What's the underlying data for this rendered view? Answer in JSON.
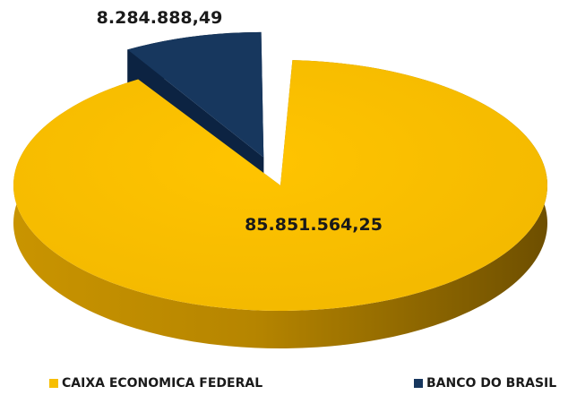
{
  "chart_data": {
    "type": "pie",
    "style": "3d-exploded",
    "categories": [
      "CAIXA ECONOMICA FEDERAL",
      "BANCO DO BRASIL"
    ],
    "values": [
      85851564.25,
      8284888.49
    ],
    "data_labels": [
      "85.851.564,25",
      "8.284.888,49"
    ],
    "colors": [
      "#F7BE00",
      "#17375E"
    ],
    "legend_position": "bottom"
  },
  "legend": {
    "items": [
      {
        "label": "CAIXA ECONOMICA FEDERAL",
        "color": "#F7BE00"
      },
      {
        "label": "BANCO DO BRASIL",
        "color": "#17375E"
      }
    ]
  }
}
